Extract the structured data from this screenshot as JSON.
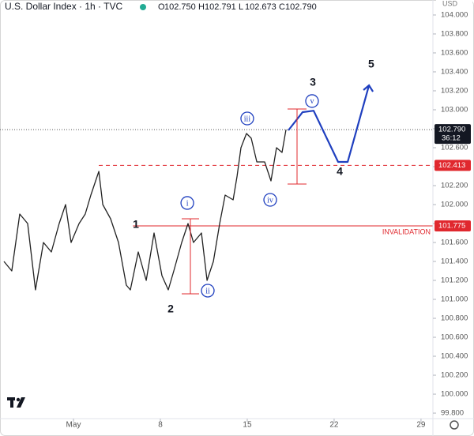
{
  "chart_data": {
    "type": "line",
    "title": "U.S. Dollar Index · 1h · TVC",
    "ohlc": [
      [
        "O",
        "102.750"
      ],
      [
        "H",
        "102.791"
      ],
      [
        "L",
        "102.673"
      ],
      [
        "C",
        "102.790"
      ]
    ],
    "currency": "USD",
    "color": "#222222",
    "x": [
      -4.6,
      -3.97,
      -3.33,
      -2.69,
      -2.06,
      -1.42,
      -0.78,
      -0.15,
      0.36,
      0.81,
      1.45,
      1.95,
      2.4,
      3.04,
      3.36,
      3.99,
      4.63,
      5.26,
      5.58,
      6.22,
      6.86,
      7.49,
      8.13,
      8.64,
      9.08,
      9.72,
      10.23,
      10.67,
      11.31,
      11.76,
      12.27,
      12.78,
      13.22,
      13.86,
      14.18,
      14.49,
      14.94,
      15.32,
      15.77,
      16.4,
      16.91,
      17.36,
      17.8,
      18.12
    ],
    "values": [
      101.4,
      101.3,
      101.9,
      101.8,
      101.1,
      101.6,
      101.5,
      101.8,
      102.0,
      101.6,
      101.8,
      101.9,
      102.1,
      102.35,
      102.0,
      101.85,
      101.6,
      101.15,
      101.1,
      101.5,
      101.2,
      101.7,
      101.25,
      101.1,
      101.3,
      101.6,
      101.8,
      101.6,
      101.7,
      101.2,
      101.4,
      101.8,
      102.1,
      102.05,
      102.3,
      102.6,
      102.75,
      102.7,
      102.45,
      102.45,
      102.25,
      102.6,
      102.55,
      102.79
    ],
    "projection": {
      "color": "#1f3fbf",
      "x": [
        18.31,
        19.46,
        20.35,
        22.32,
        23.09,
        24.81
      ],
      "values": [
        102.783,
        102.975,
        102.99,
        102.45,
        102.45,
        103.258
      ]
    },
    "last_price": {
      "value": 102.79,
      "label": "102.790",
      "countdown": "36:12"
    },
    "levels": [
      {
        "value": 102.413,
        "label": "102.413",
        "from": 3.04,
        "style": "dashed",
        "color": "#e0282e"
      },
      {
        "value": 101.775,
        "label": "101.775",
        "from": 5.79,
        "style": "solid",
        "color": "#e0282e",
        "name": "INVALIDATION"
      }
    ],
    "waves": [
      {
        "label": "1",
        "x": 6.03,
        "y": 101.783,
        "circled": false
      },
      {
        "label": "2",
        "x": 8.83,
        "y": 100.892,
        "circled": false
      },
      {
        "label": "3",
        "x": 20.29,
        "y": 103.283,
        "circled": false
      },
      {
        "label": "4",
        "x": 22.45,
        "y": 102.342,
        "circled": false
      },
      {
        "label": "5",
        "x": 24.99,
        "y": 103.475,
        "circled": false
      },
      {
        "label": "i",
        "x": 10.17,
        "y": 102.017,
        "circled": true
      },
      {
        "label": "ii",
        "x": 11.82,
        "y": 101.092,
        "circled": true
      },
      {
        "label": "iii",
        "x": 15.0,
        "y": 102.908,
        "circled": true
      },
      {
        "label": "iv",
        "x": 16.85,
        "y": 102.05,
        "circled": true
      },
      {
        "label": "v",
        "x": 20.22,
        "y": 103.092,
        "circled": true
      }
    ],
    "xlim": [
      -4.92,
      29.96
    ],
    "xticks": [
      {
        "value": 1,
        "label": "May"
      },
      8,
      15,
      22,
      29
    ],
    "ylim": [
      99.742,
      104.158
    ],
    "yticks": [
      {
        "value": 104,
        "label": "104.000"
      },
      {
        "value": 103.8,
        "label": "103.800"
      },
      {
        "value": 103.6,
        "label": "103.600"
      },
      {
        "value": 103.4,
        "label": "103.400"
      },
      {
        "value": 103.2,
        "label": "103.200"
      },
      {
        "value": 103,
        "label": "103.000"
      },
      {
        "value": 102.8,
        "label": "102.800"
      },
      {
        "value": 102.6,
        "label": "102.600"
      },
      {
        "value": 102.4,
        "label": "102.400"
      },
      {
        "value": 102.2,
        "label": "102.200"
      },
      {
        "value": 102,
        "label": "102.000"
      },
      {
        "value": 101.8,
        "label": "101.800"
      },
      {
        "value": 101.6,
        "label": "101.600"
      },
      {
        "value": 101.4,
        "label": "101.400"
      },
      {
        "value": 101.2,
        "label": "101.200"
      },
      {
        "value": 101,
        "label": "101.000"
      },
      {
        "value": 100.8,
        "label": "100.800"
      },
      {
        "value": 100.6,
        "label": "100.600"
      },
      {
        "value": 100.4,
        "label": "100.400"
      },
      {
        "value": 100.2,
        "label": "100.200"
      },
      {
        "value": 100,
        "label": "100.000"
      },
      {
        "value": 99.8,
        "label": "99.800"
      }
    ],
    "grid": false
  }
}
